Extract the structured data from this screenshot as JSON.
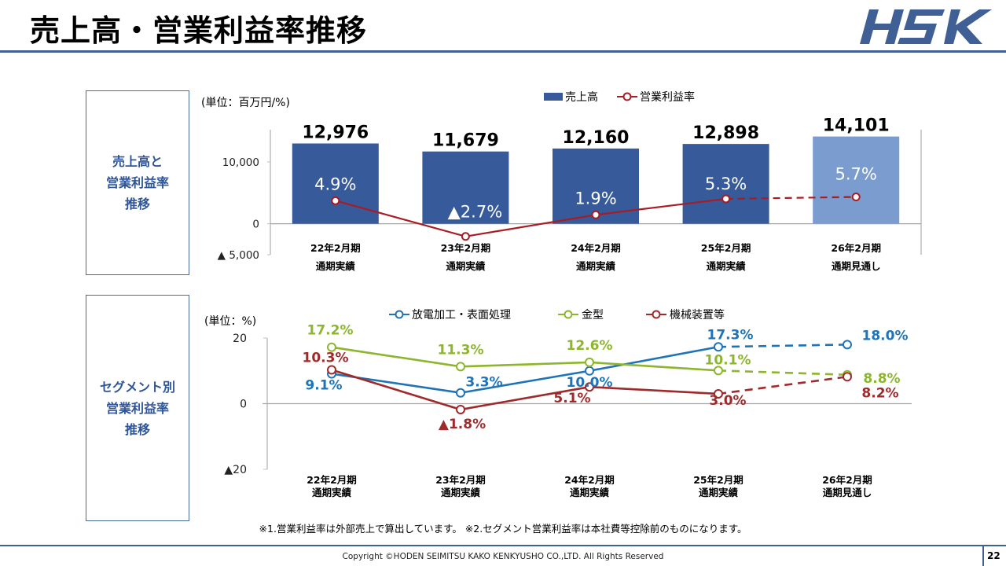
{
  "header": {
    "title": "売上高・営業利益率推移",
    "logo_text": "HSK"
  },
  "sections": [
    {
      "lines": [
        "売上高と",
        "営業利益率",
        "推移"
      ]
    },
    {
      "lines": [
        "セグメント別",
        "営業利益率",
        "推移"
      ]
    }
  ],
  "colors": {
    "brand": "#3f5f95",
    "bar_actual": "#365a9a",
    "bar_forecast": "#7a9ccf",
    "margin_line": "#a81c24",
    "seg_edm": "#1f73b7",
    "seg_mold": "#8db52d",
    "seg_machine": "#9e2a2b"
  },
  "chart_data": [
    {
      "type": "bar",
      "unit_label": "(単位：百万円/%)",
      "categories": [
        [
          "22年2月期",
          "通期実績"
        ],
        [
          "23年2月期",
          "通期実績"
        ],
        [
          "24年2月期",
          "通期実績"
        ],
        [
          "25年2月期",
          "通期実績"
        ],
        [
          "26年2月期",
          "通期見通し"
        ]
      ],
      "forecast_index": 4,
      "series": [
        {
          "name": "売上高",
          "kind": "bar",
          "values": [
            12976,
            11679,
            12160,
            12898,
            14101
          ],
          "labels": [
            "12,976",
            "11,679",
            "12,160",
            "12,898",
            "14,101"
          ]
        },
        {
          "name": "営業利益率",
          "kind": "line",
          "axis": "secondary",
          "values": [
            4.9,
            -2.7,
            1.9,
            5.3,
            5.7
          ],
          "labels": [
            "4.9%",
            "▲2.7%",
            "1.9%",
            "5.3%",
            "5.7%"
          ]
        }
      ],
      "y_ticks": [
        {
          "value": 10000,
          "label": "10,000"
        },
        {
          "value": 0,
          "label": "0"
        },
        {
          "value": -5000,
          "label": "▲ 5,000"
        }
      ],
      "ylim": [
        -5000,
        15200
      ],
      "y2lim": [
        -10,
        20
      ],
      "legend": [
        "売上高",
        "営業利益率"
      ],
      "legend_position": "top-right"
    },
    {
      "type": "line",
      "unit_label": "(単位：%)",
      "categories": [
        [
          "22年2月期",
          "通期実績"
        ],
        [
          "23年2月期",
          "通期実績"
        ],
        [
          "24年2月期",
          "通期実績"
        ],
        [
          "25年2月期",
          "通期実績"
        ],
        [
          "26年2月期",
          "通期見通し"
        ]
      ],
      "forecast_index": 4,
      "series": [
        {
          "name": "放電加工・表面処理",
          "color_key": "seg_edm",
          "values": [
            9.1,
            3.3,
            10.0,
            17.3,
            18.0
          ],
          "labels": [
            "9.1%",
            "3.3%",
            "10.0%",
            "17.3%",
            "18.0%"
          ]
        },
        {
          "name": "金型",
          "color_key": "seg_mold",
          "values": [
            17.2,
            11.3,
            12.6,
            10.1,
            8.8
          ],
          "labels": [
            "17.2%",
            "11.3%",
            "12.6%",
            "10.1%",
            "8.8%"
          ]
        },
        {
          "name": "機械装置等",
          "color_key": "seg_machine",
          "values": [
            10.3,
            -1.8,
            5.1,
            3.0,
            8.2
          ],
          "labels": [
            "10.3%",
            "▲1.8%",
            "5.1%",
            "3.0%",
            "8.2%"
          ]
        }
      ],
      "y_ticks": [
        {
          "value": 20,
          "label": "20"
        },
        {
          "value": 0,
          "label": "0"
        },
        {
          "value": -20,
          "label": "▲20"
        }
      ],
      "ylim": [
        -20,
        20
      ],
      "legend": [
        "放電加工・表面処理",
        "金型",
        "機械装置等"
      ],
      "legend_position": "top"
    }
  ],
  "notes": "※1.営業利益率は外部売上で算出しています。 ※2.セグメント営業利益率は本社費等控除前のものになります。",
  "footer": {
    "copyright": "Copyright ©HODEN SEIMITSU KAKO KENKYUSHO CO.,LTD. All Rights Reserved",
    "page_number": "22"
  }
}
